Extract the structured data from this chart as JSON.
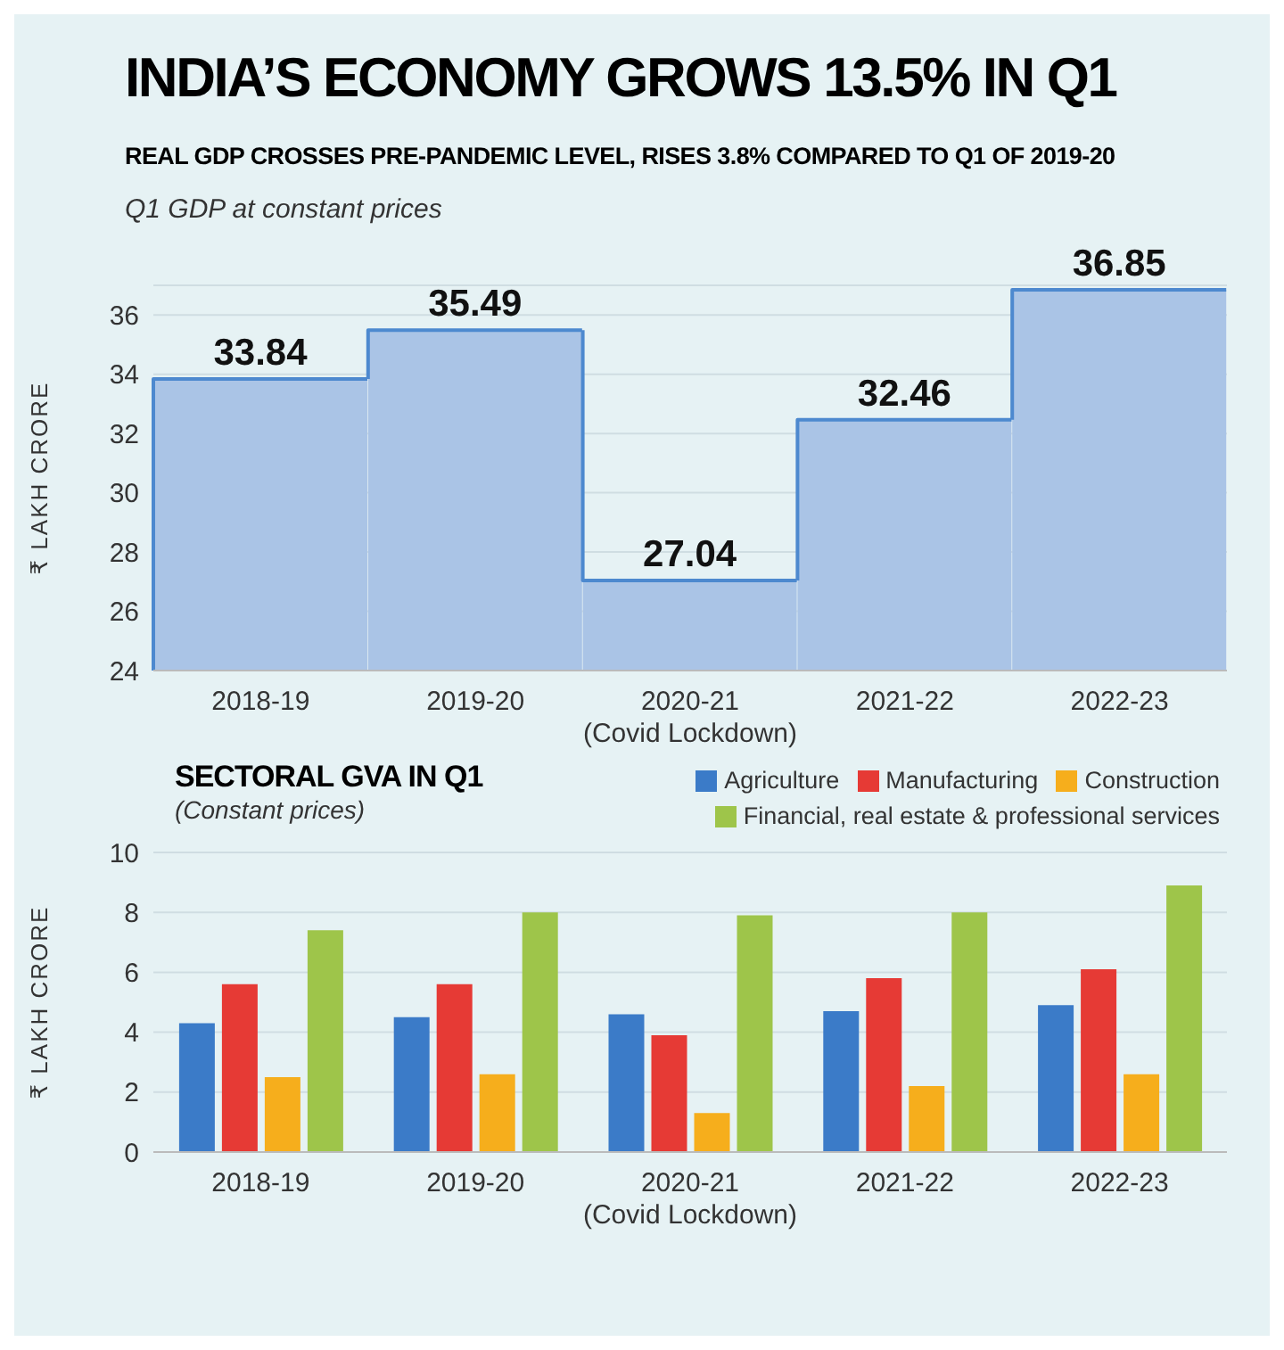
{
  "chart_data": [
    {
      "type": "bar",
      "title": "INDIA’S ECONOMY GROWS 13.5% IN Q1",
      "subtitle": "REAL GDP CROSSES PRE-PANDEMIC LEVEL, RISES 3.8% COMPARED TO Q1 OF 2019-20",
      "annotations": [
        "Q1 GDP at constant prices"
      ],
      "ylabel": "₹ LAKH CRORE",
      "categories": [
        "2018-19",
        "2019-20",
        "2020-21\n(Covid Lockdown)",
        "2021-22",
        "2022-23"
      ],
      "series": [
        {
          "color": "#aac4e6",
          "values": [
            33.84,
            35.49,
            27.04,
            32.46,
            36.85
          ]
        }
      ],
      "ylim": [
        24,
        37
      ],
      "yticks": [
        24,
        26,
        28,
        30,
        32,
        34,
        36
      ],
      "grid": "y",
      "data_labels": true
    },
    {
      "type": "bar",
      "title": "SECTORAL GVA IN Q1",
      "subtitle": "(Constant prices)",
      "ylabel": "₹ LAKH CRORE",
      "categories": [
        "2018-19",
        "2019-20",
        "2020-21\n(Covid Lockdown)",
        "2021-22",
        "2022-23"
      ],
      "series": [
        {
          "name": "Agriculture",
          "color": "#3b7bc8",
          "values": [
            4.3,
            4.5,
            4.6,
            4.7,
            4.9
          ]
        },
        {
          "name": "Manufacturing",
          "color": "#e63a35",
          "values": [
            5.6,
            5.6,
            3.9,
            5.8,
            6.1
          ]
        },
        {
          "name": "Construction",
          "color": "#f6ae1c",
          "values": [
            2.5,
            2.6,
            1.3,
            2.2,
            2.6
          ]
        },
        {
          "name": "Financial, real estate & professional services",
          "color": "#9ec54a",
          "values": [
            7.4,
            8.0,
            7.9,
            8.0,
            8.9
          ]
        }
      ],
      "ylim": [
        0,
        10
      ],
      "yticks": [
        0,
        2,
        4,
        6,
        8,
        10
      ],
      "grid": "y",
      "legend": "top right"
    }
  ]
}
